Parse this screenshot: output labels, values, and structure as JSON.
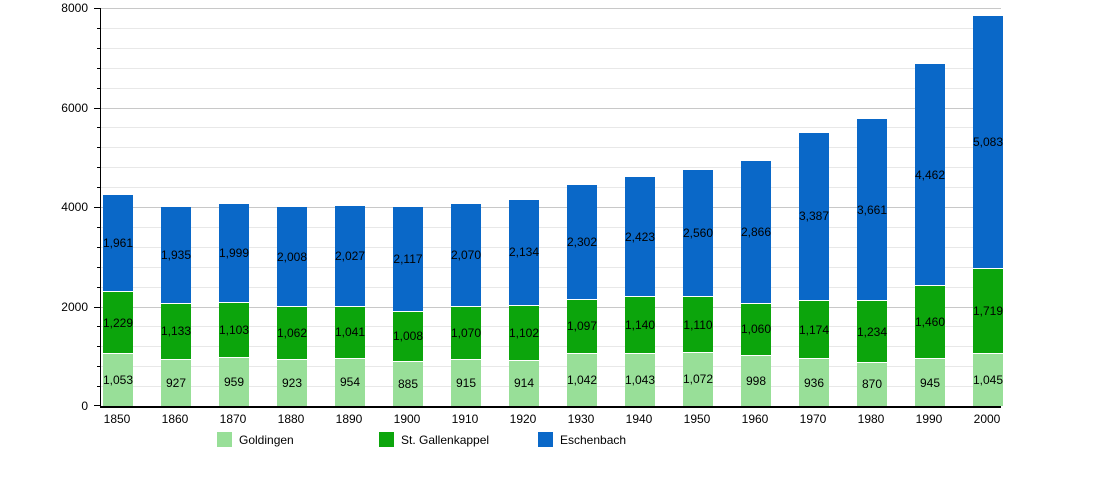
{
  "chart_data": {
    "type": "bar",
    "stacked": true,
    "title": "",
    "xlabel": "",
    "ylabel": "",
    "categories": [
      "1850",
      "1860",
      "1870",
      "1880",
      "1890",
      "1900",
      "1910",
      "1920",
      "1930",
      "1940",
      "1950",
      "1960",
      "1970",
      "1980",
      "1990",
      "2000"
    ],
    "series": [
      {
        "name": "Goldingen",
        "color": "#98df98",
        "values": [
          1053,
          927,
          959,
          923,
          954,
          885,
          915,
          914,
          1042,
          1043,
          1072,
          998,
          936,
          870,
          945,
          1045
        ]
      },
      {
        "name": "St. Gallenkappel",
        "color": "#0ca50c",
        "values": [
          1229,
          1133,
          1103,
          1062,
          1041,
          1008,
          1070,
          1102,
          1097,
          1140,
          1110,
          1060,
          1174,
          1234,
          1460,
          1719
        ]
      },
      {
        "name": "Eschenbach",
        "color": "#0a68c8",
        "values": [
          1961,
          1935,
          1999,
          2008,
          2027,
          2117,
          2070,
          2134,
          2302,
          2423,
          2560,
          2866,
          3387,
          3661,
          4462,
          5083
        ]
      }
    ],
    "ylim": [
      0,
      8000
    ],
    "y_major_tick_labels": [
      "0",
      "2000",
      "4000",
      "6000",
      "8000"
    ],
    "y_major_step": 2000,
    "y_minor_step": 400,
    "grid": true,
    "legend_position": "bottom",
    "value_labels_inside_bars": true,
    "colors": {
      "axis": "#000000",
      "gridline_major": "#c8c8c8",
      "gridline_minor": "#e8e8e8",
      "label_text": "#000000",
      "background": "#ffffff"
    }
  }
}
